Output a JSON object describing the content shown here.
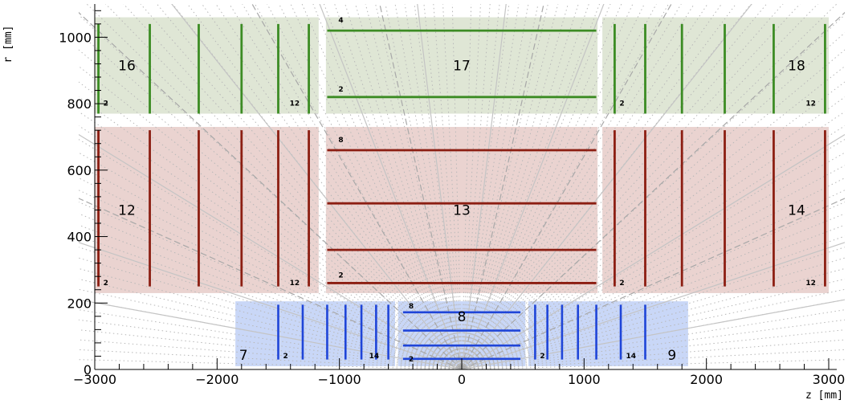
{
  "x_axis": {
    "label": "z [mm]",
    "range": [
      -3000,
      3000
    ],
    "ticks": [
      -3000,
      -2000,
      -1000,
      0,
      1000,
      2000,
      3000
    ]
  },
  "y_axis": {
    "label": "r [mm]",
    "range": [
      0,
      1100
    ],
    "ticks": [
      0,
      200,
      400,
      600,
      800,
      1000
    ]
  },
  "colors": {
    "green_fill": "#dfe6d6",
    "green_line": "#3c8c24",
    "red_fill": "#ead3d0",
    "red_line": "#8c1e12",
    "blue_fill": "#c9d7f7",
    "blue_line": "#1f45d8"
  },
  "volumes": [
    {
      "id": "16",
      "label": "16",
      "zmin": -3000,
      "zmax": -1170,
      "rmin": 770,
      "rmax": 1060,
      "color": "green",
      "orientation": "disc",
      "layers": [
        -2970,
        -2550,
        -2150,
        -1800,
        -1500,
        -1250
      ],
      "lo_label": "2",
      "hi_label": "12",
      "lmin": 770,
      "lmax": 1040
    },
    {
      "id": "17",
      "label": "17",
      "zmin": -1110,
      "zmax": 1110,
      "rmin": 770,
      "rmax": 1060,
      "color": "green",
      "orientation": "barrel",
      "layers": [
        820,
        1020
      ],
      "lo_label": "2",
      "hi_label": "4",
      "lmin": -1100,
      "lmax": 1100
    },
    {
      "id": "18",
      "label": "18",
      "zmin": 1150,
      "zmax": 3000,
      "rmin": 770,
      "rmax": 1060,
      "color": "green",
      "orientation": "disc",
      "layers": [
        1250,
        1500,
        1800,
        2150,
        2550,
        2970
      ],
      "lo_label": "2",
      "hi_label": "12",
      "lmin": 770,
      "lmax": 1040
    },
    {
      "id": "12",
      "label": "12",
      "zmin": -3000,
      "zmax": -1170,
      "rmin": 230,
      "rmax": 730,
      "color": "red",
      "orientation": "disc",
      "layers": [
        -2970,
        -2550,
        -2150,
        -1800,
        -1500,
        -1250
      ],
      "lo_label": "2",
      "hi_label": "12",
      "lmin": 250,
      "lmax": 720
    },
    {
      "id": "13",
      "label": "13",
      "zmin": -1110,
      "zmax": 1110,
      "rmin": 230,
      "rmax": 730,
      "color": "red",
      "orientation": "barrel",
      "layers": [
        260,
        360,
        500,
        660
      ],
      "lo_label": "2",
      "hi_label": "8",
      "lmin": -1100,
      "lmax": 1100
    },
    {
      "id": "14",
      "label": "14",
      "zmin": 1150,
      "zmax": 3000,
      "rmin": 230,
      "rmax": 730,
      "color": "red",
      "orientation": "disc",
      "layers": [
        1250,
        1500,
        1800,
        2150,
        2550,
        2970
      ],
      "lo_label": "2",
      "hi_label": "12",
      "lmin": 250,
      "lmax": 720
    },
    {
      "id": "7",
      "label": "7",
      "zmin": -1850,
      "zmax": -545,
      "rmin": 10,
      "rmax": 205,
      "color": "blue",
      "orientation": "disc",
      "layers": [
        -1500,
        -1300,
        -1100,
        -950,
        -820,
        -700,
        -600
      ],
      "lo_label": "2",
      "hi_label": "14",
      "lmin": 30,
      "lmax": 195
    },
    {
      "id": "8",
      "label": "8",
      "zmin": -520,
      "zmax": 520,
      "rmin": 10,
      "rmax": 205,
      "color": "blue",
      "orientation": "barrel",
      "layers": [
        32,
        72,
        117,
        172
      ],
      "lo_label": "2",
      "hi_label": "8",
      "lmin": -480,
      "lmax": 480
    },
    {
      "id": "9",
      "label": "9",
      "zmin": 545,
      "zmax": 1850,
      "rmin": 10,
      "rmax": 205,
      "color": "blue",
      "orientation": "disc",
      "layers": [
        600,
        700,
        820,
        950,
        1100,
        1300,
        1500
      ],
      "lo_label": "2",
      "hi_label": "14",
      "lmin": 30,
      "lmax": 195
    }
  ]
}
